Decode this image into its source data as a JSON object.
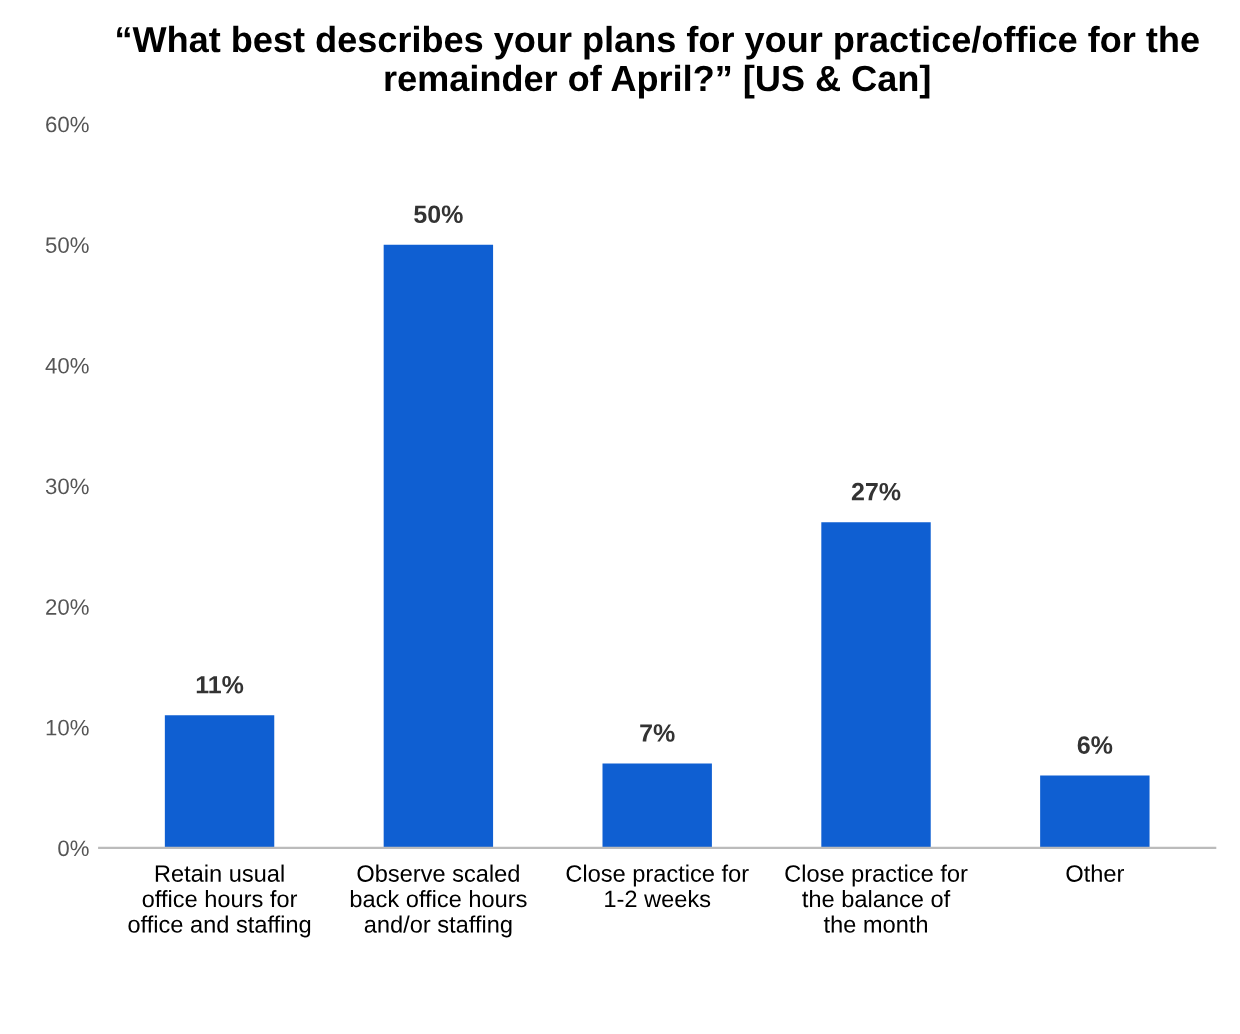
{
  "chart_data": {
    "type": "bar",
    "title": "“What best describes your plans for your practice/office for the remainder of April?” [US & Can]",
    "categories": [
      "Retain usual\noffice hours for\noffice and staffing",
      "Observe scaled\nback office hours\nand/or staffing",
      "Close practice for\n1-2 weeks",
      "Close practice for\nthe balance of\nthe month",
      "Other"
    ],
    "values": [
      11,
      50,
      7,
      27,
      6
    ],
    "color": "#0f5fd2",
    "ylim": [
      0,
      60
    ],
    "yticks": [
      {
        "value": 0,
        "label": "0%"
      },
      {
        "value": 10,
        "label": "10%"
      },
      {
        "value": 20,
        "label": "20%"
      },
      {
        "value": 30,
        "label": "30%"
      },
      {
        "value": 40,
        "label": "40%"
      },
      {
        "value": 50,
        "label": "50%"
      },
      {
        "value": 60,
        "label": "60%"
      }
    ],
    "value_labels": [
      "11%",
      "50%",
      "7%",
      "27%",
      "6%"
    ],
    "grid": false,
    "legend": false
  }
}
